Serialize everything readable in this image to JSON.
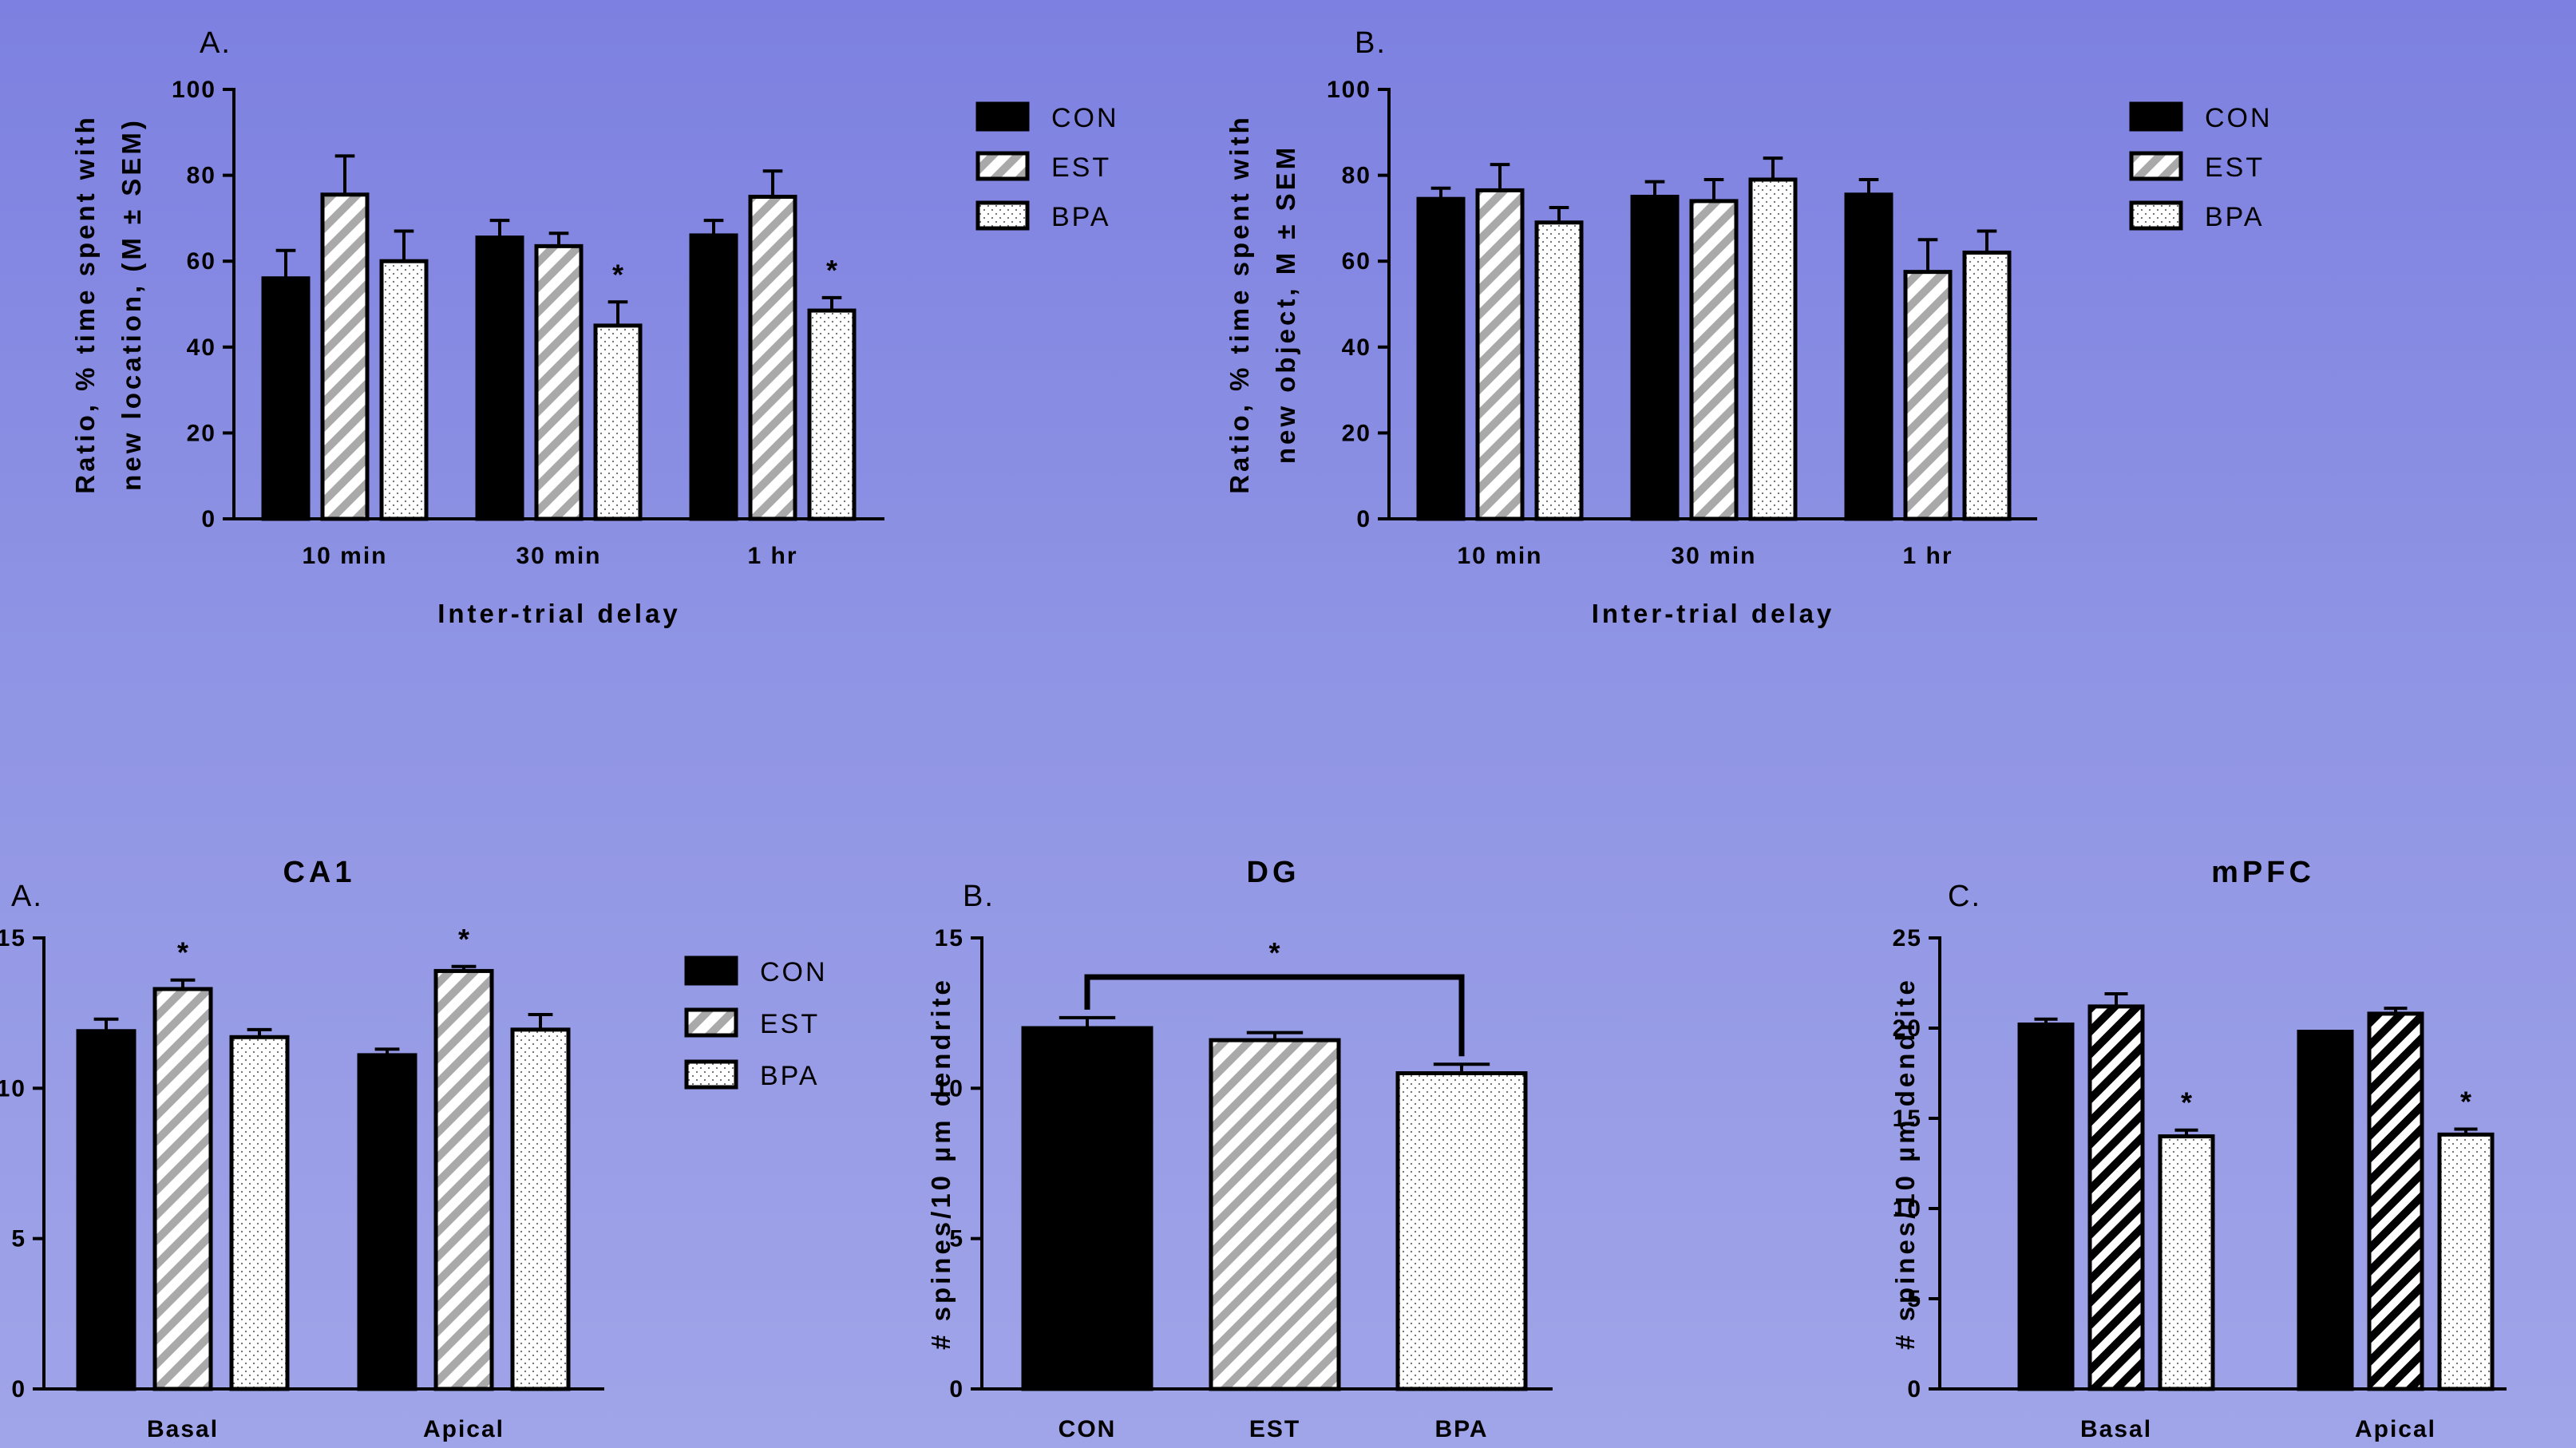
{
  "colors": {
    "con": "#000000",
    "est_stroke": "#a9a9a9",
    "bpa_fill": "#ffffff",
    "background_top": "#7d80e0",
    "background_bottom": "#a0a4e8"
  },
  "chart_data": [
    {
      "type": "bar",
      "panel_label": "A.",
      "title": "",
      "ylabel_lines": [
        "Ratio, % time spent with",
        "new location, (M ± SEM)"
      ],
      "xlabel": "Inter-trial delay",
      "categories": [
        "10 min",
        "30 min",
        "1 hr"
      ],
      "ylim": [
        0,
        100
      ],
      "yticks": [
        "0",
        "20",
        "40",
        "60",
        "80",
        "100"
      ],
      "series": [
        {
          "name": "CON",
          "values": [
            56,
            65.5,
            66
          ],
          "errors": [
            6.5,
            4,
            3.5
          ]
        },
        {
          "name": "EST",
          "values": [
            75.5,
            63.5,
            75
          ],
          "errors": [
            9,
            3,
            6
          ]
        },
        {
          "name": "BPA",
          "values": [
            60,
            45,
            48.5
          ],
          "errors": [
            7,
            5.5,
            3
          ]
        }
      ],
      "stars": [
        null,
        "*",
        "*"
      ],
      "legend": [
        "CON",
        "EST",
        "BPA"
      ],
      "legend_position": "right"
    },
    {
      "type": "bar",
      "panel_label": "B.",
      "title": "",
      "ylabel_lines": [
        "Ratio, % time spent with",
        "new object, M ± SEM"
      ],
      "xlabel": "Inter-trial delay",
      "categories": [
        "10 min",
        "30 min",
        "1 hr"
      ],
      "ylim": [
        0,
        100
      ],
      "yticks": [
        "0",
        "20",
        "40",
        "60",
        "80",
        "100"
      ],
      "series": [
        {
          "name": "CON",
          "values": [
            74.5,
            75,
            75.5
          ],
          "errors": [
            2.5,
            3.5,
            3.5
          ]
        },
        {
          "name": "EST",
          "values": [
            76.5,
            74,
            57.5
          ],
          "errors": [
            6,
            5,
            7.5
          ]
        },
        {
          "name": "BPA",
          "values": [
            69,
            79,
            62
          ],
          "errors": [
            3.5,
            5,
            5
          ]
        }
      ],
      "stars": [
        null,
        null,
        null
      ],
      "legend": [
        "CON",
        "EST",
        "BPA"
      ],
      "legend_position": "right"
    },
    {
      "type": "bar",
      "panel_label": "A.",
      "title": "CA1",
      "ylabel_lines": [],
      "xlabel": "",
      "categories": [
        "Basal",
        "Apical"
      ],
      "ylim": [
        0,
        15
      ],
      "yticks": [
        "0",
        "5",
        "10",
        "15"
      ],
      "series": [
        {
          "name": "CON",
          "values": [
            11.9,
            11.1
          ],
          "errors": [
            0.4,
            0.2
          ]
        },
        {
          "name": "EST",
          "values": [
            13.3,
            13.9
          ],
          "errors": [
            0.3,
            0.15
          ]
        },
        {
          "name": "BPA",
          "values": [
            11.7,
            11.95
          ],
          "errors": [
            0.25,
            0.5
          ]
        }
      ],
      "stars": [
        {
          "series": 1
        },
        {
          "series": 1
        }
      ],
      "legend": [
        "CON",
        "EST",
        "BPA"
      ],
      "legend_position": "right"
    },
    {
      "type": "bar",
      "panel_label": "B.",
      "title": "DG",
      "ylabel_lines": [
        "# spines/10 µm dendrite"
      ],
      "xlabel": "",
      "categories": [
        "CON",
        "EST",
        "BPA"
      ],
      "ylim": [
        0,
        15
      ],
      "yticks": [
        "0",
        "5",
        "10",
        "15"
      ],
      "values": [
        12,
        11.6,
        10.5
      ],
      "errors": [
        0.35,
        0.25,
        0.3
      ],
      "bracket": {
        "from": 0,
        "to": 2,
        "label": "*"
      }
    },
    {
      "type": "bar",
      "panel_label": "C.",
      "title": "mPFC",
      "ylabel_lines": [
        "# spines/10 µm dendrite"
      ],
      "xlabel": "",
      "categories": [
        "Basal",
        "Apical"
      ],
      "ylim": [
        0,
        25
      ],
      "yticks": [
        "0",
        "5",
        "10",
        "15",
        "20",
        "25"
      ],
      "series": [
        {
          "name": "CON",
          "values": [
            20.2,
            19.8
          ],
          "errors": [
            0.3,
            0
          ]
        },
        {
          "name": "EST",
          "values": [
            21.2,
            20.8
          ],
          "errors": [
            0.7,
            0.3
          ]
        },
        {
          "name": "BPA",
          "values": [
            14,
            14.1
          ],
          "errors": [
            0.35,
            0.3
          ]
        }
      ],
      "stars": [
        {
          "series": 2
        },
        {
          "series": 2
        }
      ]
    }
  ]
}
